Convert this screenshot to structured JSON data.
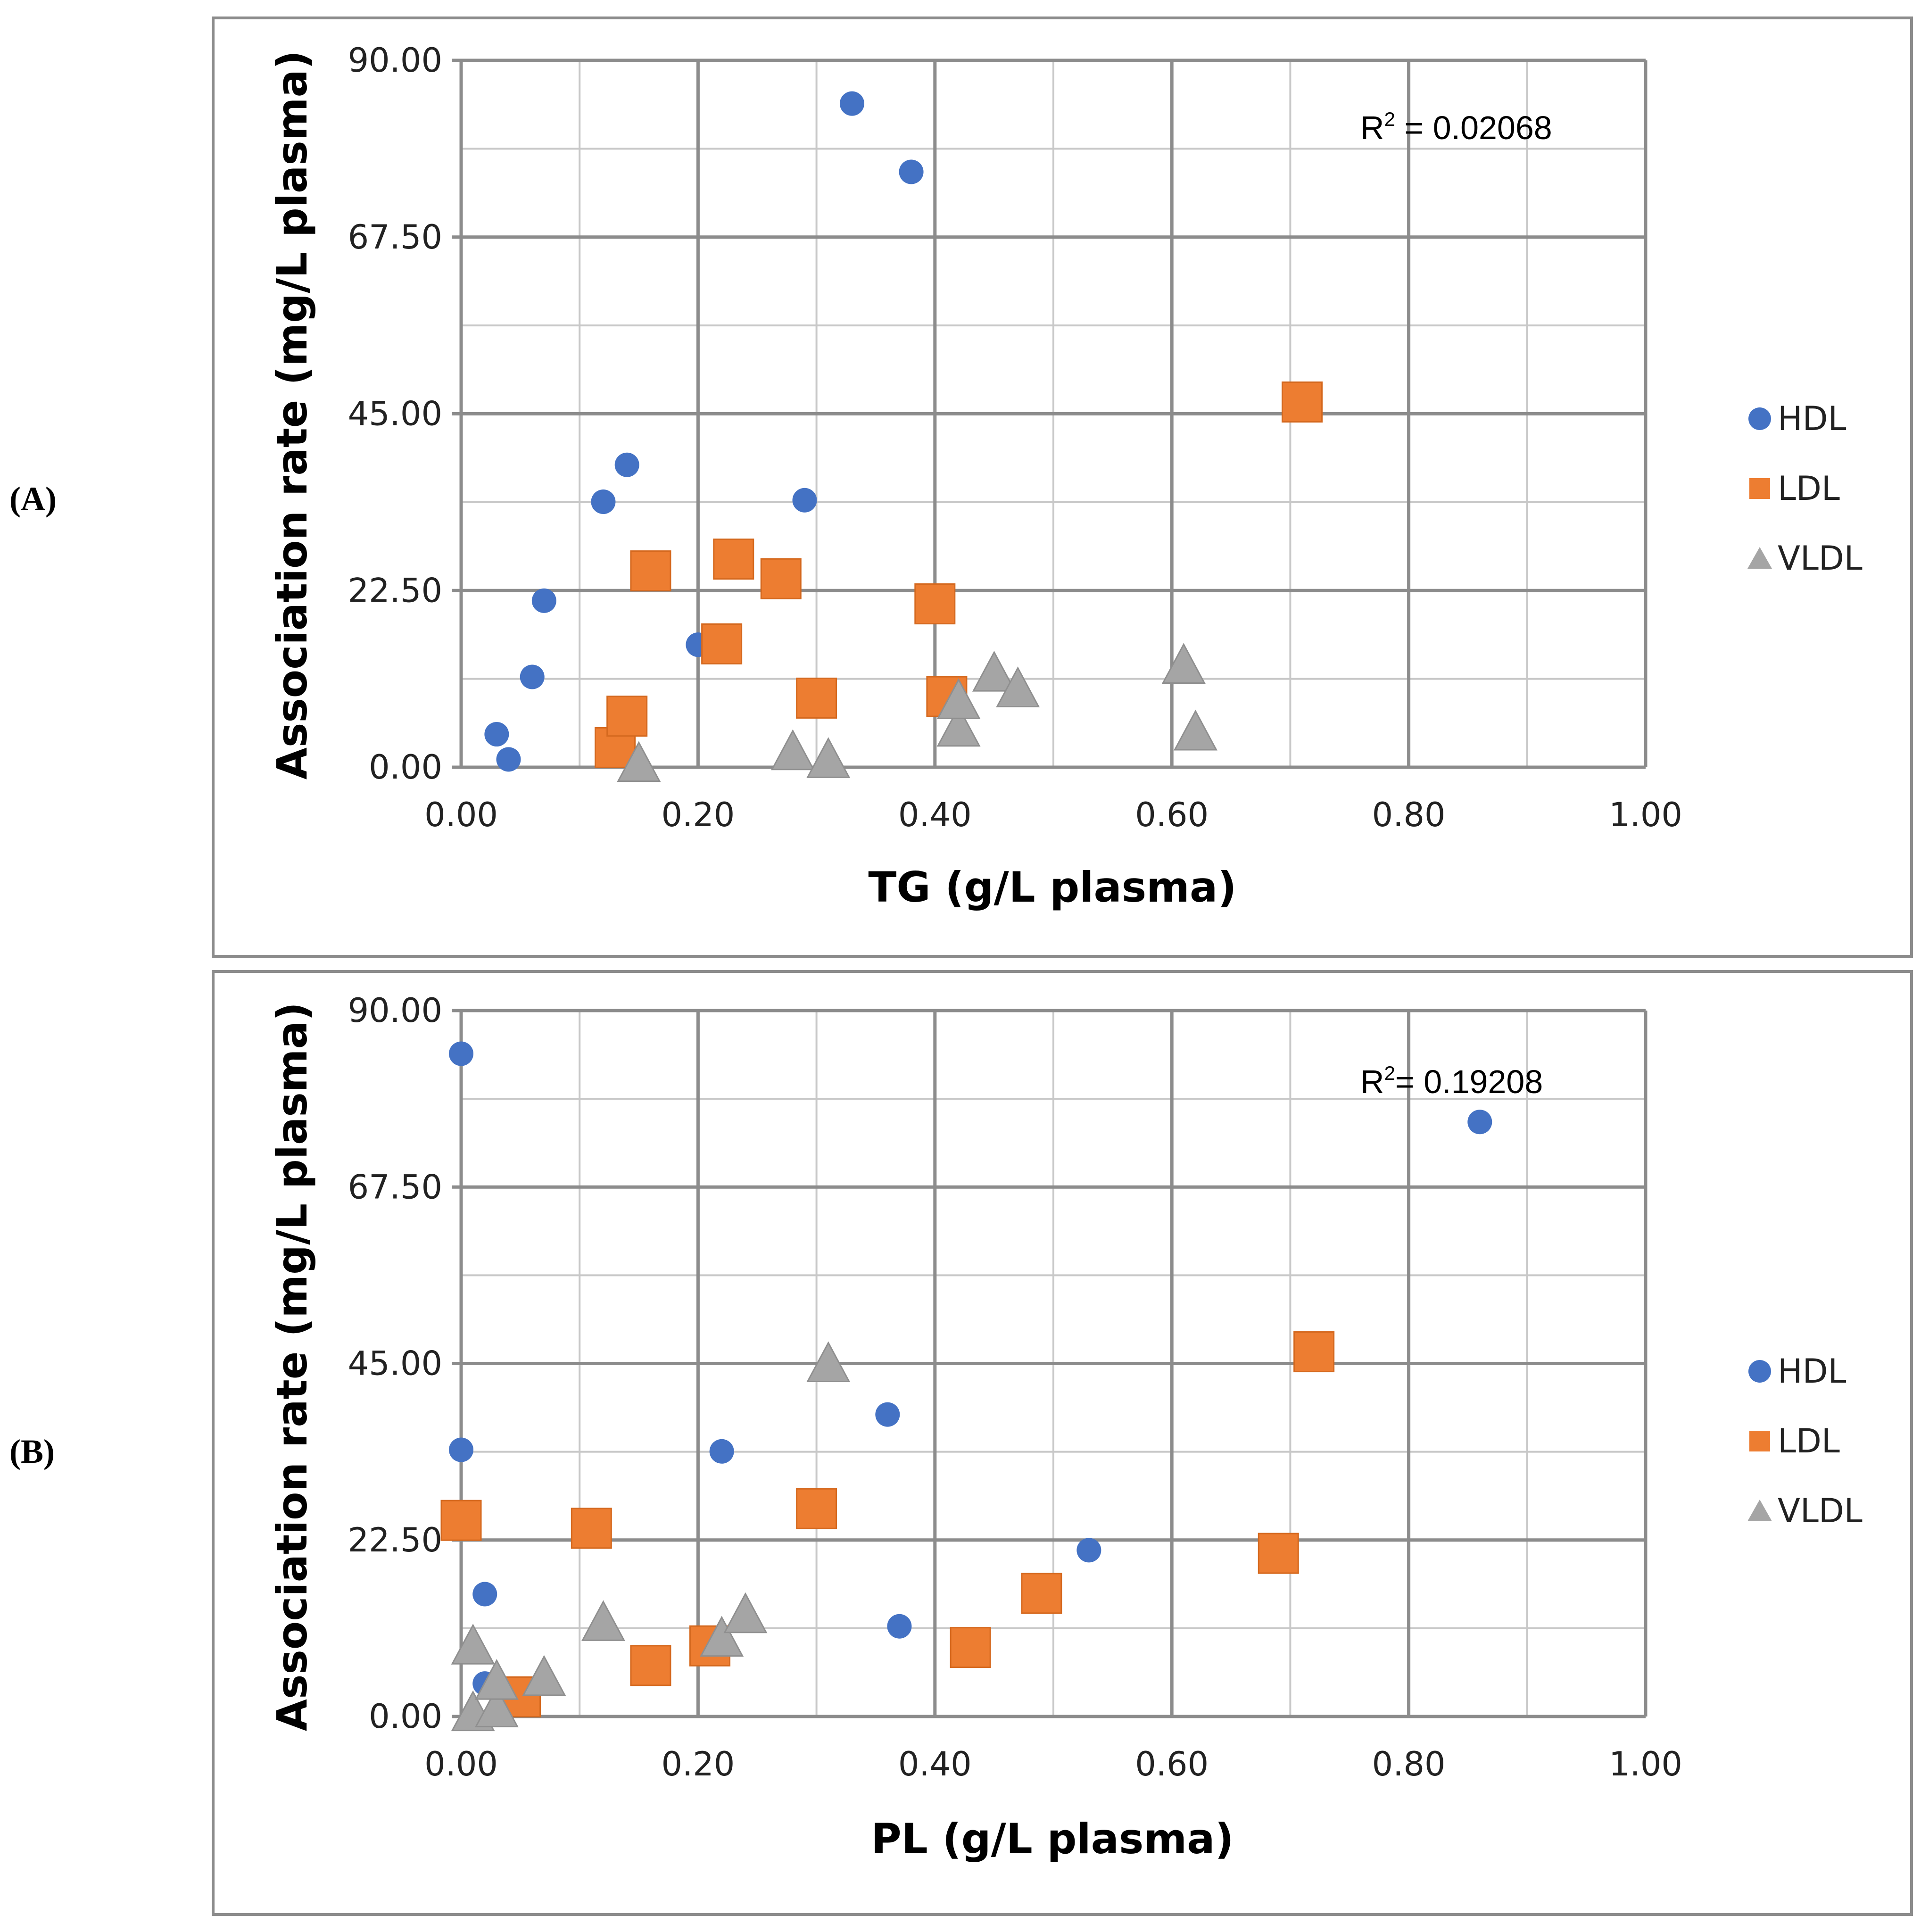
{
  "panels": [
    {
      "label": "(A)",
      "r2_label": "R",
      "r2_exp": "2",
      "r2_value": " = 0.02068",
      "legend": [
        "HDL",
        "LDL",
        "VLDL"
      ]
    },
    {
      "label": "(B)",
      "r2_label": "R",
      "r2_exp": "2",
      "r2_value": "= 0.19208",
      "legend": [
        "HDL",
        "LDL",
        "VLDL"
      ]
    }
  ],
  "colors": {
    "HDL": "#4472c4",
    "LDL": "#ed7d31",
    "VLDL": "#a5a5a5"
  },
  "chart_data": [
    {
      "type": "scatter",
      "title": "",
      "xlabel": "TG (g/L plasma)",
      "ylabel": "Association rate  (mg/L plasma)",
      "xlim": [
        0,
        1
      ],
      "ylim": [
        0,
        90
      ],
      "x_ticks": [
        "0.00",
        "0.20",
        "0.40",
        "0.60",
        "0.80",
        "1.00"
      ],
      "y_ticks": [
        "0.00",
        "22.50",
        "45.00",
        "67.50",
        "90.00"
      ],
      "series": [
        {
          "name": "HDL",
          "x": [
            0.03,
            0.04,
            0.06,
            0.07,
            0.12,
            0.14,
            0.2,
            0.29,
            0.33,
            0.38
          ],
          "y": [
            4.2,
            1.0,
            11.5,
            21.2,
            33.8,
            38.5,
            15.6,
            34.0,
            84.5,
            75.8
          ]
        },
        {
          "name": "LDL",
          "x": [
            0.13,
            0.14,
            0.16,
            0.22,
            0.23,
            0.27,
            0.3,
            0.4,
            0.41,
            0.71
          ],
          "y": [
            2.5,
            6.5,
            25.0,
            15.7,
            26.5,
            24.0,
            8.8,
            20.8,
            9.0,
            46.5
          ]
        },
        {
          "name": "VLDL",
          "x": [
            0.15,
            0.28,
            0.31,
            0.42,
            0.42,
            0.45,
            0.47,
            0.61,
            0.62
          ],
          "y": [
            0.5,
            2.0,
            1.0,
            5.0,
            8.5,
            12.0,
            10.0,
            13.0,
            4.5
          ]
        }
      ]
    },
    {
      "type": "scatter",
      "title": "",
      "xlabel": "PL (g/L plasma)",
      "ylabel": "Association rate  (mg/L plasma)",
      "xlim": [
        0,
        1
      ],
      "ylim": [
        0,
        90
      ],
      "x_ticks": [
        "0.00",
        "0.20",
        "0.40",
        "0.60",
        "0.80",
        "1.00"
      ],
      "y_ticks": [
        "0.00",
        "22.50",
        "45.00",
        "67.50",
        "90.00"
      ],
      "series": [
        {
          "name": "HDL",
          "x": [
            0.0,
            0.0,
            0.02,
            0.02,
            0.22,
            0.36,
            0.37,
            0.53,
            0.86
          ],
          "y": [
            84.5,
            34.0,
            15.6,
            4.2,
            33.8,
            38.5,
            11.5,
            21.2,
            75.8
          ]
        },
        {
          "name": "LDL",
          "x": [
            0.0,
            0.05,
            0.11,
            0.16,
            0.21,
            0.3,
            0.43,
            0.49,
            0.69,
            0.72
          ],
          "y": [
            25.0,
            2.5,
            24.0,
            6.5,
            9.0,
            26.5,
            8.8,
            15.7,
            20.8,
            46.5
          ]
        },
        {
          "name": "VLDL",
          "x": [
            0.01,
            0.01,
            0.03,
            0.03,
            0.07,
            0.12,
            0.22,
            0.24,
            0.31
          ],
          "y": [
            9.0,
            0.5,
            1.0,
            4.5,
            5.0,
            12.0,
            10.0,
            13.0,
            45.0
          ]
        }
      ]
    }
  ]
}
